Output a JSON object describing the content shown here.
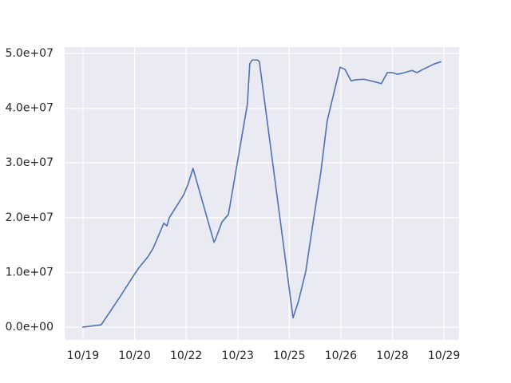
{
  "chart_data": {
    "type": "line",
    "x": [
      -0.02,
      0.53,
      1.07,
      1.51,
      1.63,
      1.88,
      2.04,
      2.35,
      2.44,
      2.51,
      2.93,
      3.06,
      3.2,
      3.81,
      3.85,
      4.04,
      4.23,
      4.78,
      4.85,
      4.92,
      5.08,
      5.13,
      6.11,
      6.27,
      6.48,
      6.69,
      6.92,
      7.1,
      7.29,
      7.48,
      7.62,
      7.8,
      7.94,
      8.17,
      8.5,
      8.68,
      8.85,
      8.99,
      9.15,
      9.29,
      9.57,
      9.71,
      9.89,
      10.22,
      10.42
    ],
    "series": [
      {
        "color": "#4c72b0",
        "values": [
          0,
          437000,
          5500000,
          9800000,
          10900000,
          12800000,
          14400000,
          19000000,
          18500000,
          20000000,
          24200000,
          26200000,
          29000000,
          15500000,
          16000000,
          19200000,
          20600000,
          40700000,
          48100000,
          48800000,
          48800000,
          48500000,
          1700000,
          4800000,
          10200000,
          19000000,
          28400000,
          37600000,
          42600000,
          47500000,
          47100000,
          45000000,
          45200000,
          45300000,
          44800000,
          44500000,
          46500000,
          46500000,
          46200000,
          46400000,
          46900000,
          46500000,
          47100000,
          48100000,
          48500000
        ]
      }
    ],
    "xlim": [
      -0.534,
      10.94
    ],
    "xticks": [
      {
        "value": 0,
        "label": "10/19"
      },
      {
        "value": 1.5,
        "label": "10/20"
      },
      {
        "value": 3,
        "label": "10/22"
      },
      {
        "value": 4.5,
        "label": "10/23"
      },
      {
        "value": 6,
        "label": "10/25"
      },
      {
        "value": 7.5,
        "label": "10/26"
      },
      {
        "value": 9,
        "label": "10/28"
      },
      {
        "value": 10.5,
        "label": "10/29"
      }
    ],
    "ylim": [
      -2330000,
      51170000
    ],
    "yticks": [
      {
        "value": 0,
        "label": "0.0e+00"
      },
      {
        "value": 10000000,
        "label": "1.0e+07"
      },
      {
        "value": 20000000,
        "label": "2.0e+07"
      },
      {
        "value": 30000000,
        "label": "3.0e+07"
      },
      {
        "value": 40000000,
        "label": "4.0e+07"
      },
      {
        "value": 50000000,
        "label": "5.0e+07"
      }
    ],
    "grid": true
  }
}
